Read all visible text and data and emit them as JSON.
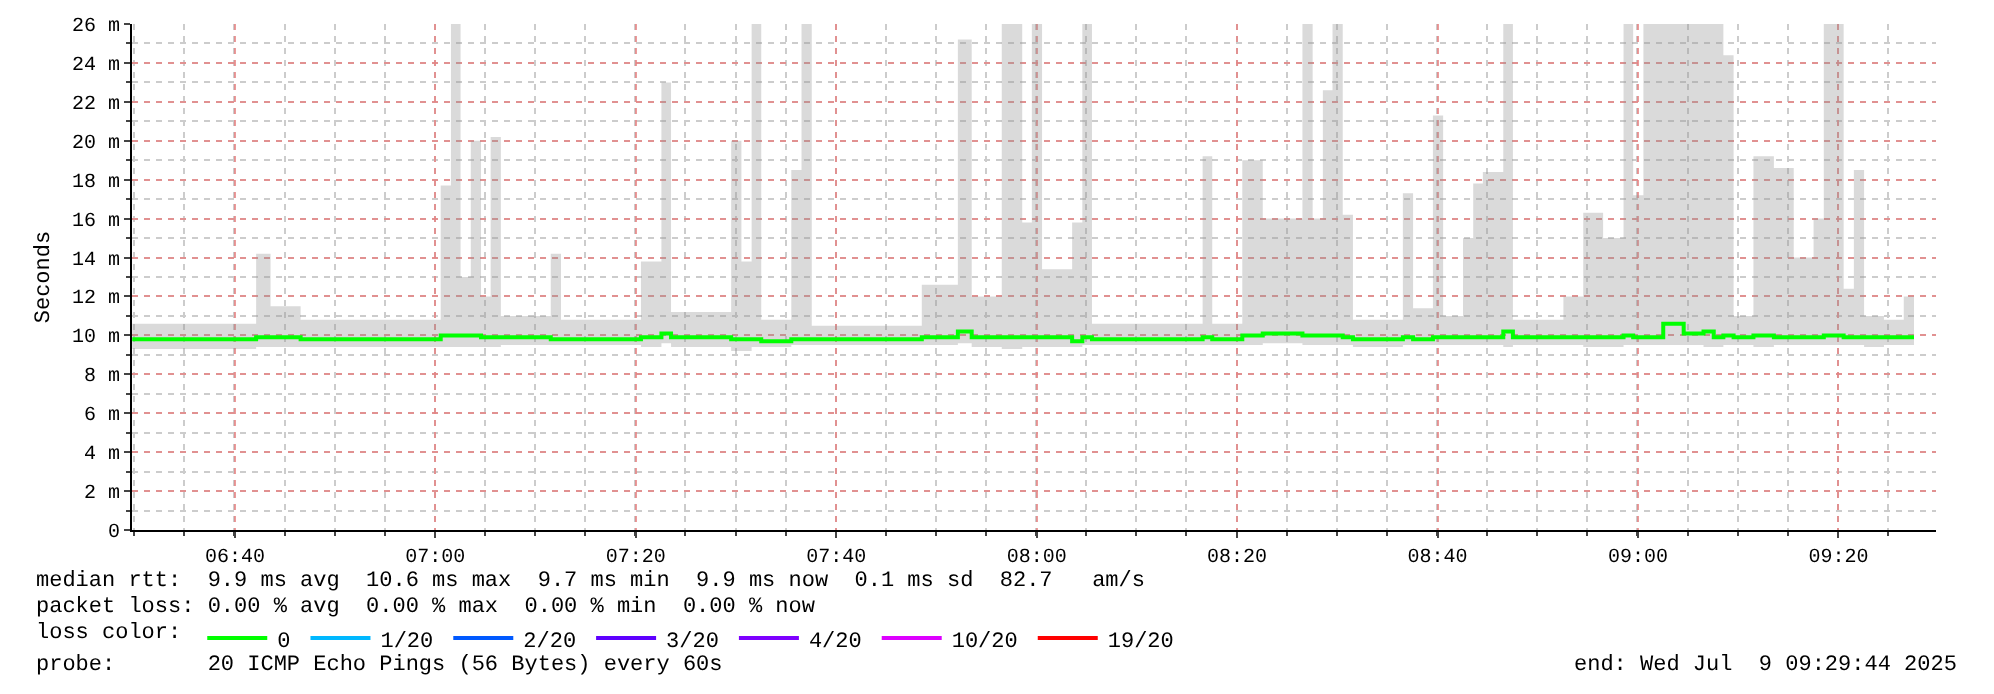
{
  "chart_data": {
    "type": "step",
    "ylabel": "Seconds",
    "legend_title": "loss color:",
    "legend": "bottom",
    "grid": true,
    "line_style": "solid",
    "marker": "none",
    "xlim": [
      6.4956,
      9.4956
    ],
    "xticks": [
      {
        "value": 6.6667,
        "label": "06:40"
      },
      {
        "value": 7,
        "label": "07:00"
      },
      {
        "value": 7.3333,
        "label": "07:20"
      },
      {
        "value": 7.6667,
        "label": "07:40"
      },
      {
        "value": 8,
        "label": "08:00"
      },
      {
        "value": 8.3333,
        "label": "08:20"
      },
      {
        "value": 8.6667,
        "label": "08:40"
      },
      {
        "value": 9,
        "label": "09:00"
      },
      {
        "value": 9.3333,
        "label": "09:20"
      }
    ],
    "ylim": [
      0,
      26
    ],
    "yticks": [
      0,
      {
        "value": 2,
        "label": "2 m"
      },
      {
        "value": 4,
        "label": "4 m"
      },
      {
        "value": 6,
        "label": "6 m"
      },
      {
        "value": 8,
        "label": "8 m"
      },
      {
        "value": 10,
        "label": "10 m"
      },
      {
        "value": 12,
        "label": "12 m"
      },
      {
        "value": 14,
        "label": "14 m"
      },
      {
        "value": 16,
        "label": "16 m"
      },
      {
        "value": 18,
        "label": "18 m"
      },
      {
        "value": 20,
        "label": "20 m"
      },
      {
        "value": 22,
        "label": "22 m"
      },
      {
        "value": 24,
        "label": "24 m"
      },
      {
        "value": 26,
        "label": "26 m"
      }
    ],
    "series": [
      {
        "name": "0",
        "color": "#00ff00",
        "x": [
          6.496,
          6.702,
          6.726,
          6.776,
          6.942,
          7.009,
          7.026,
          7.042,
          7.059,
          7.076,
          7.092,
          7.109,
          7.192,
          7.209,
          7.342,
          7.376,
          7.392,
          7.492,
          7.509,
          7.526,
          7.542,
          7.592,
          7.609,
          7.626,
          7.809,
          7.869,
          7.892,
          7.942,
          7.976,
          7.992,
          8.009,
          8.059,
          8.076,
          8.092,
          8.276,
          8.292,
          8.342,
          8.376,
          8.442,
          8.459,
          8.476,
          8.492,
          8.509,
          8.526,
          8.609,
          8.626,
          8.659,
          8.676,
          8.709,
          8.726,
          8.742,
          8.776,
          8.792,
          8.876,
          8.909,
          8.942,
          8.976,
          8.992,
          9.009,
          9.042,
          9.076,
          9.109,
          9.126,
          9.142,
          9.159,
          9.192,
          9.226,
          9.259,
          9.292,
          9.309,
          9.342,
          9.359,
          9.376,
          9.409,
          9.442,
          9.459
        ],
        "values": [
          9.8,
          9.9,
          9.9,
          9.8,
          9.8,
          10,
          10,
          10,
          10,
          9.9,
          9.9,
          9.9,
          9.8,
          9.8,
          9.9,
          10.1,
          9.9,
          9.8,
          9.8,
          9.8,
          9.7,
          9.8,
          9.8,
          9.8,
          9.9,
          10.2,
          9.9,
          9.9,
          9.9,
          9.9,
          9.9,
          9.7,
          9.9,
          9.8,
          9.9,
          9.8,
          10,
          10.1,
          10,
          10,
          10,
          10,
          9.9,
          9.8,
          9.9,
          9.8,
          9.9,
          9.9,
          9.9,
          9.9,
          9.9,
          10.2,
          9.9,
          9.9,
          9.9,
          9.9,
          10,
          9.9,
          9.9,
          10.6,
          10.1,
          10.2,
          9.9,
          10,
          9.9,
          10,
          9.9,
          9.9,
          9.9,
          10,
          9.9,
          9.9,
          9.9,
          9.9,
          9.9,
          9.9
        ],
        "lower": [
          9.3,
          9.4,
          9.4,
          9.4,
          9.4,
          9.4,
          9.4,
          9.4,
          9.4,
          9.4,
          9.4,
          9.5,
          9.5,
          9.5,
          9.4,
          9.6,
          9.4,
          9.2,
          9.2,
          9.4,
          9.4,
          9.5,
          9.5,
          9.5,
          9.5,
          9.6,
          9.4,
          9.3,
          9.4,
          9.4,
          9.4,
          9.4,
          9.5,
          9.5,
          9.5,
          9.5,
          9.5,
          9.6,
          9.5,
          9.5,
          9.5,
          9.5,
          9.5,
          9.4,
          9.5,
          9.5,
          9.5,
          9.5,
          9.5,
          9.5,
          9.5,
          9.4,
          9.5,
          9.5,
          9.4,
          9.4,
          9.5,
          9.5,
          9.5,
          9.5,
          9.5,
          9.4,
          9.4,
          9.5,
          9.5,
          9.4,
          9.5,
          9.5,
          9.5,
          9.5,
          9.5,
          9.5,
          9.4,
          9.5,
          9.5,
          9.5
        ],
        "upper": [
          10.6,
          14.2,
          11.5,
          10.8,
          10.8,
          17.7,
          26,
          13,
          20,
          12,
          20.2,
          11,
          14.2,
          10.8,
          13.8,
          23,
          11.2,
          20,
          13.8,
          26,
          10.8,
          18.5,
          26,
          10.5,
          12.6,
          25.2,
          12,
          26,
          15.8,
          26,
          13.4,
          15.8,
          26,
          10.6,
          19.2,
          10.6,
          19,
          16,
          26,
          16,
          22.6,
          26,
          16.2,
          10.8,
          17.3,
          11.4,
          21.3,
          11,
          15,
          17.8,
          18.4,
          26,
          10.8,
          12,
          16.3,
          15,
          26,
          17.2,
          26,
          26,
          26,
          26,
          26,
          24.4,
          11,
          19.2,
          18.6,
          14,
          16,
          26,
          12.4,
          18.5,
          11,
          10.8,
          12,
          12
        ]
      },
      {
        "name": "1/20",
        "color": "#00b8ff",
        "values": [
          null
        ]
      },
      {
        "name": "2/20",
        "color": "#0059ff",
        "values": [
          null
        ]
      },
      {
        "name": "3/20",
        "color": "#5e00ff",
        "values": [
          null
        ]
      },
      {
        "name": "4/20",
        "color": "#7e00ff",
        "values": [
          null
        ]
      },
      {
        "name": "10/20",
        "color": "#dd00ff",
        "values": [
          null
        ]
      },
      {
        "name": "19/20",
        "color": "#ff0000",
        "values": [
          null
        ]
      }
    ],
    "annotations": [
      "median rtt:  9.9 ms avg  10.6 ms max  9.7 ms min  9.9 ms now  0.1 ms sd  82.7   am/s",
      "packet loss: 0.00 % avg  0.00 % max  0.00 % min  0.00 % now",
      "probe:       20 ICMP Echo Pings (56 Bytes) every 60s",
      "end: Wed Jul  9 09:29:44 2025"
    ]
  }
}
